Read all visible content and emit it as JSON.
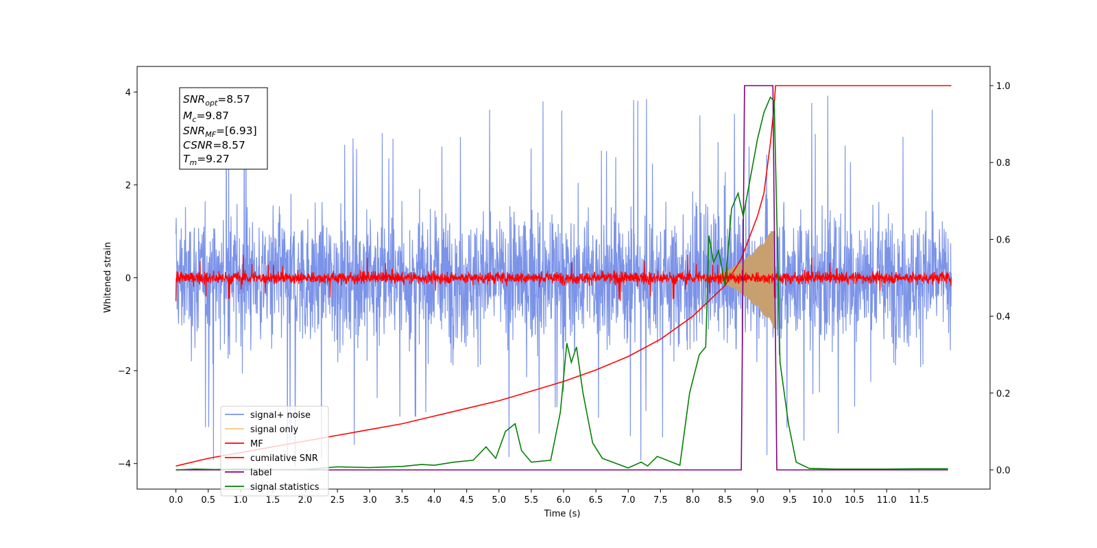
{
  "chart_data": {
    "type": "line",
    "xlabel": "Time (s)",
    "ylabel": "Whitened strain",
    "xlim": [
      -0.6,
      12.6
    ],
    "ylim_left": [
      -4.55,
      4.55
    ],
    "ylim_right": [
      -0.05,
      1.05
    ],
    "x_ticks": [
      0.0,
      0.5,
      1.0,
      1.5,
      2.0,
      2.5,
      3.0,
      3.5,
      4.0,
      4.5,
      5.0,
      5.5,
      6.0,
      6.5,
      7.0,
      7.5,
      8.0,
      8.5,
      9.0,
      9.5,
      10.0,
      10.5,
      11.0,
      11.5
    ],
    "x_tick_labels": [
      "0.0",
      "0.5",
      "1.0",
      "1.5",
      "2.0",
      "2.5",
      "3.0",
      "3.5",
      "4.0",
      "4.5",
      "5.0",
      "5.5",
      "6.0",
      "6.5",
      "7.0",
      "7.5",
      "8.0",
      "8.5",
      "9.0",
      "9.5",
      "10.0",
      "10.5",
      "11.0",
      "11.5"
    ],
    "y_left_ticks": [
      4,
      2,
      0,
      -2,
      -4
    ],
    "y_left_tick_labels": [
      "4",
      "2",
      "0",
      "−2",
      "−4"
    ],
    "y_right_ticks": [
      1.0,
      0.8,
      0.6,
      0.4,
      0.2,
      0.0
    ],
    "y_right_tick_labels": [
      "1.0",
      "0.8",
      "0.6",
      "0.4",
      "0.2",
      "0.0"
    ],
    "legend_position": "lower-left",
    "series": [
      {
        "name": "signal+ noise",
        "axis": "left",
        "color": "#7b93e8",
        "kind": "noise",
        "x_range": [
          0.0,
          12.0
        ],
        "typical_amplitude": 2.2,
        "peak_amplitude": 4.1
      },
      {
        "name": "signal only",
        "axis": "left",
        "color": "#c8a070",
        "kind": "chirp",
        "x_range": [
          8.0,
          9.27
        ],
        "peak_amplitude": 1.1
      },
      {
        "name": "MF",
        "axis": "left",
        "color": "#ff0000",
        "kind": "noise",
        "x_range": [
          0.0,
          12.0
        ],
        "typical_amplitude": 0.2,
        "peak_amplitude": 0.55
      },
      {
        "name": "cumilative SNR",
        "axis": "right",
        "color": "#ff0000",
        "points": [
          [
            0.0,
            0.01
          ],
          [
            0.5,
            0.03
          ],
          [
            1.0,
            0.045
          ],
          [
            1.5,
            0.06
          ],
          [
            2.0,
            0.075
          ],
          [
            2.5,
            0.09
          ],
          [
            3.0,
            0.105
          ],
          [
            3.5,
            0.12
          ],
          [
            4.0,
            0.14
          ],
          [
            4.5,
            0.16
          ],
          [
            5.0,
            0.18
          ],
          [
            5.5,
            0.205
          ],
          [
            6.0,
            0.23
          ],
          [
            6.5,
            0.26
          ],
          [
            7.0,
            0.295
          ],
          [
            7.5,
            0.34
          ],
          [
            8.0,
            0.4
          ],
          [
            8.5,
            0.48
          ],
          [
            8.75,
            0.55
          ],
          [
            9.0,
            0.66
          ],
          [
            9.1,
            0.72
          ],
          [
            9.2,
            0.85
          ],
          [
            9.26,
            0.95
          ],
          [
            9.28,
            1.0
          ],
          [
            12.0,
            1.0
          ]
        ]
      },
      {
        "name": "label",
        "axis": "right",
        "color": "#800080",
        "points": [
          [
            0.0,
            0.0
          ],
          [
            8.75,
            0.0
          ],
          [
            8.8,
            1.0
          ],
          [
            9.24,
            1.0
          ],
          [
            9.3,
            0.0
          ],
          [
            11.95,
            0.0
          ]
        ]
      },
      {
        "name": "signal statistics",
        "axis": "right",
        "color": "#008000",
        "points": [
          [
            0.0,
            0.0
          ],
          [
            0.3,
            0.002
          ],
          [
            0.6,
            0.001
          ],
          [
            1.0,
            0.002
          ],
          [
            1.5,
            0.001
          ],
          [
            2.0,
            0.001
          ],
          [
            2.5,
            0.008
          ],
          [
            3.0,
            0.006
          ],
          [
            3.5,
            0.009
          ],
          [
            3.8,
            0.014
          ],
          [
            4.0,
            0.012
          ],
          [
            4.3,
            0.02
          ],
          [
            4.6,
            0.025
          ],
          [
            4.8,
            0.06
          ],
          [
            4.95,
            0.03
          ],
          [
            5.1,
            0.1
          ],
          [
            5.25,
            0.12
          ],
          [
            5.35,
            0.05
          ],
          [
            5.5,
            0.02
          ],
          [
            5.8,
            0.025
          ],
          [
            5.95,
            0.15
          ],
          [
            6.05,
            0.33
          ],
          [
            6.12,
            0.28
          ],
          [
            6.2,
            0.32
          ],
          [
            6.3,
            0.2
          ],
          [
            6.45,
            0.07
          ],
          [
            6.6,
            0.03
          ],
          [
            7.0,
            0.005
          ],
          [
            7.2,
            0.02
          ],
          [
            7.3,
            0.01
          ],
          [
            7.45,
            0.035
          ],
          [
            7.6,
            0.025
          ],
          [
            7.8,
            0.012
          ],
          [
            7.95,
            0.2
          ],
          [
            8.1,
            0.3
          ],
          [
            8.2,
            0.32
          ],
          [
            8.25,
            0.61
          ],
          [
            8.32,
            0.54
          ],
          [
            8.4,
            0.57
          ],
          [
            8.5,
            0.48
          ],
          [
            8.6,
            0.68
          ],
          [
            8.7,
            0.72
          ],
          [
            8.78,
            0.66
          ],
          [
            8.88,
            0.75
          ],
          [
            9.0,
            0.86
          ],
          [
            9.1,
            0.93
          ],
          [
            9.2,
            0.97
          ],
          [
            9.26,
            0.96
          ],
          [
            9.35,
            0.28
          ],
          [
            9.48,
            0.12
          ],
          [
            9.6,
            0.02
          ],
          [
            9.8,
            0.004
          ],
          [
            10.2,
            0.002
          ],
          [
            11.0,
            0.002
          ],
          [
            11.5,
            0.003
          ],
          [
            11.95,
            0.003
          ]
        ]
      }
    ],
    "legend": [
      "signal+ noise",
      "signal only",
      "MF",
      "cumilative SNR",
      "label",
      "signal statistics"
    ],
    "stats_box": {
      "snr_opt_sym": "SNR",
      "snr_opt_sub": "opt",
      "snr_opt_val": "=8.57",
      "mc_sym": "M",
      "mc_sub": "c",
      "mc_val": "=9.87",
      "snr_mf_sym": "SNR",
      "snr_mf_sub": "MF",
      "snr_mf_val": "=[6.93]",
      "csnr_sym": "CSNR",
      "csnr_val": "=8.57",
      "tm_sym": "T",
      "tm_sub": "m",
      "tm_val": "=9.27"
    }
  }
}
